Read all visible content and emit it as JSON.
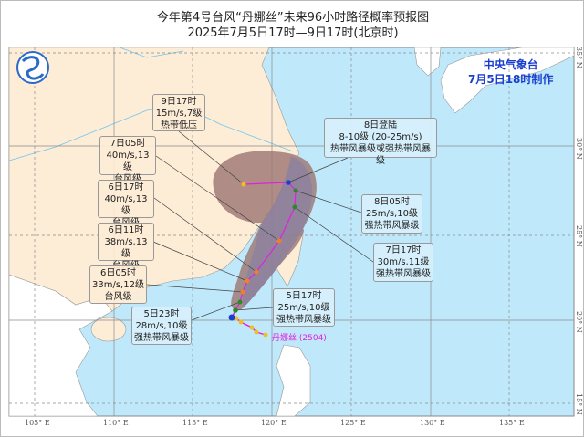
{
  "title": "今年第4号台风“丹娜丝”未来96小时路径概率预报图",
  "subtitle": "2025年7月5日17时—9日17时(北京时)",
  "agency": {
    "name": "中央气象台",
    "issued": "7月5日18时制作"
  },
  "typhoon": {
    "name": "丹娜丝",
    "number": "(2504)",
    "track_color": "#e020e0"
  },
  "colors": {
    "land_china": "#fdecd6",
    "sea": "#bfe9fb",
    "cone": "#a07e82",
    "tropical_storm": "#2a8a2a",
    "typhoon": "#f08020",
    "depression": "#f0c020",
    "landfall": "#1a3fcf"
  },
  "longitude_labels": [
    "105° E",
    "110° E",
    "115° E",
    "120° E",
    "125° E",
    "130° E",
    "135° E"
  ],
  "latitude_labels": [
    "35° N",
    "30° N",
    "25° N",
    "20° N",
    "15° N"
  ],
  "forecast_points": [
    {
      "time": "9日17时",
      "wind": "15m/s,7级",
      "category": "热带低压"
    },
    {
      "time": "7日05时",
      "wind": "40m/s,13级",
      "category": "台风级"
    },
    {
      "time": "6日17时",
      "wind": "40m/s,13级",
      "category": "台风级"
    },
    {
      "time": "6日11时",
      "wind": "38m/s,13级",
      "category": "台风级"
    },
    {
      "time": "6日05时",
      "wind": "33m/s,12级",
      "category": "台风级"
    },
    {
      "time": "5日23时",
      "wind": "28m/s,10级",
      "category": "强热带风暴级"
    },
    {
      "time": "5日17时",
      "wind": "25m/s,10级",
      "category": "强热带风暴级"
    },
    {
      "time": "8日登陆",
      "wind": "8-10级 (20-25m/s)",
      "category": "热带风暴级或强热带风暴级"
    },
    {
      "time": "8日05时",
      "wind": "25m/s,10级",
      "category": "强热带风暴级"
    },
    {
      "time": "7日17时",
      "wind": "30m/s,11级",
      "category": "强热带风暴级"
    }
  ]
}
